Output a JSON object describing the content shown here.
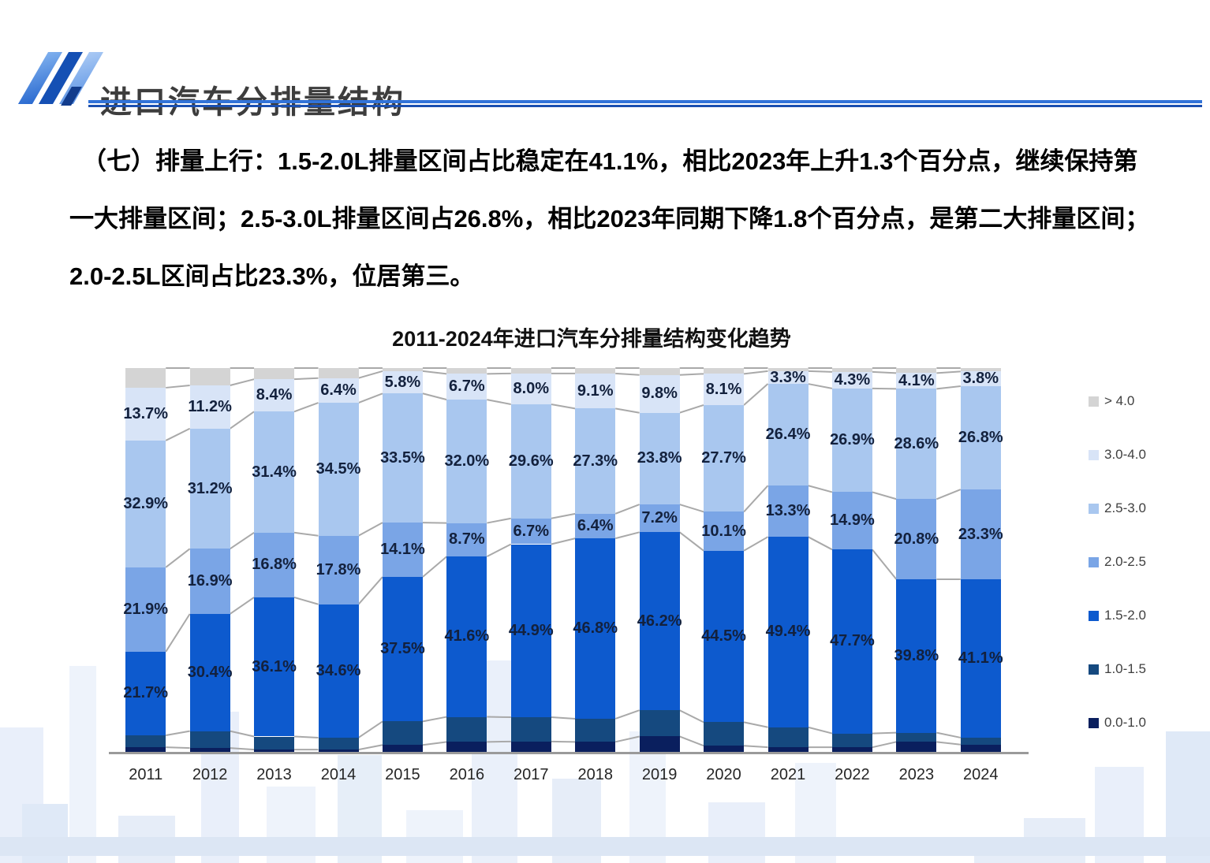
{
  "header": {
    "title": "进口汽车分排量结构"
  },
  "body": {
    "lines": [
      "（七）排量上行：1.5-2.0L排量区间占比稳定在41.1%，相比2023年上升1.3个百分点，继续保持第",
      "一大排量区间；2.5-3.0L排量区间占26.8%，相比2023年同期下降1.8个百分点，是第二大排量区间；",
      "2.0-2.5L区间占比23.3%，位居第三。"
    ]
  },
  "chart_data": {
    "type": "bar",
    "variant": "stacked-100-percent-column",
    "title": "2011-2024年进口汽车分排量结构变化趋势",
    "unit": "%",
    "ylim": [
      0,
      100
    ],
    "grid": false,
    "legend_position": "right",
    "categories": [
      "2011",
      "2012",
      "2013",
      "2014",
      "2015",
      "2016",
      "2017",
      "2018",
      "2019",
      "2020",
      "2021",
      "2022",
      "2023",
      "2024"
    ],
    "series": [
      {
        "name": "0.0-1.0",
        "color": "#0a1f5e",
        "labels_shown": false,
        "estimated_from_pixels": true,
        "values": [
          1.6,
          1.4,
          1.0,
          1.0,
          2.2,
          3.0,
          3.1,
          3.0,
          4.4,
          2.0,
          1.6,
          1.6,
          3.0,
          2.3
        ]
      },
      {
        "name": "1.0-1.5",
        "color": "#15497f",
        "labels_shown": false,
        "estimated_from_pixels": true,
        "values": [
          3.1,
          4.4,
          3.4,
          3.1,
          6.1,
          6.5,
          6.3,
          6.0,
          6.8,
          6.1,
          5.2,
          3.6,
          2.4,
          1.8
        ]
      },
      {
        "name": "1.5-2.0",
        "color": "#0d5ace",
        "labels_shown": true,
        "values": [
          21.7,
          30.4,
          36.1,
          34.6,
          37.5,
          41.6,
          44.9,
          46.8,
          46.2,
          44.5,
          49.4,
          47.7,
          39.8,
          41.1
        ]
      },
      {
        "name": "2.0-2.5",
        "color": "#7aa5e6",
        "labels_shown": true,
        "values": [
          21.9,
          16.9,
          16.8,
          17.8,
          14.1,
          8.7,
          6.7,
          6.4,
          7.2,
          10.1,
          13.3,
          14.9,
          20.8,
          23.3
        ]
      },
      {
        "name": "2.5-3.0",
        "color": "#a9c7ef",
        "labels_shown": true,
        "values": [
          32.9,
          31.2,
          31.4,
          34.5,
          33.5,
          32.0,
          29.6,
          27.3,
          23.8,
          27.7,
          26.4,
          26.9,
          28.6,
          26.8
        ]
      },
      {
        "name": "3.0-4.0",
        "color": "#d8e4f7",
        "labels_shown": true,
        "values": [
          13.7,
          11.2,
          8.4,
          6.4,
          5.8,
          6.7,
          8.0,
          9.1,
          9.8,
          8.1,
          3.3,
          4.3,
          4.1,
          3.8
        ]
      },
      {
        "name": "> 4.0",
        "color": "#d4d4d4",
        "labels_shown": false,
        "estimated_from_pixels": true,
        "values": [
          5.1,
          4.5,
          2.9,
          2.6,
          0.8,
          1.5,
          1.4,
          1.4,
          1.8,
          1.5,
          0.8,
          1.0,
          1.3,
          0.9
        ]
      }
    ],
    "legend_order_top_to_bottom": [
      "> 4.0",
      "3.0-4.0",
      "2.5-3.0",
      "2.0-2.5",
      "1.5-2.0",
      "1.0-1.5",
      "0.0-1.0"
    ],
    "connector_line_color": "#a9a9a9",
    "label_color": "#13213d"
  }
}
